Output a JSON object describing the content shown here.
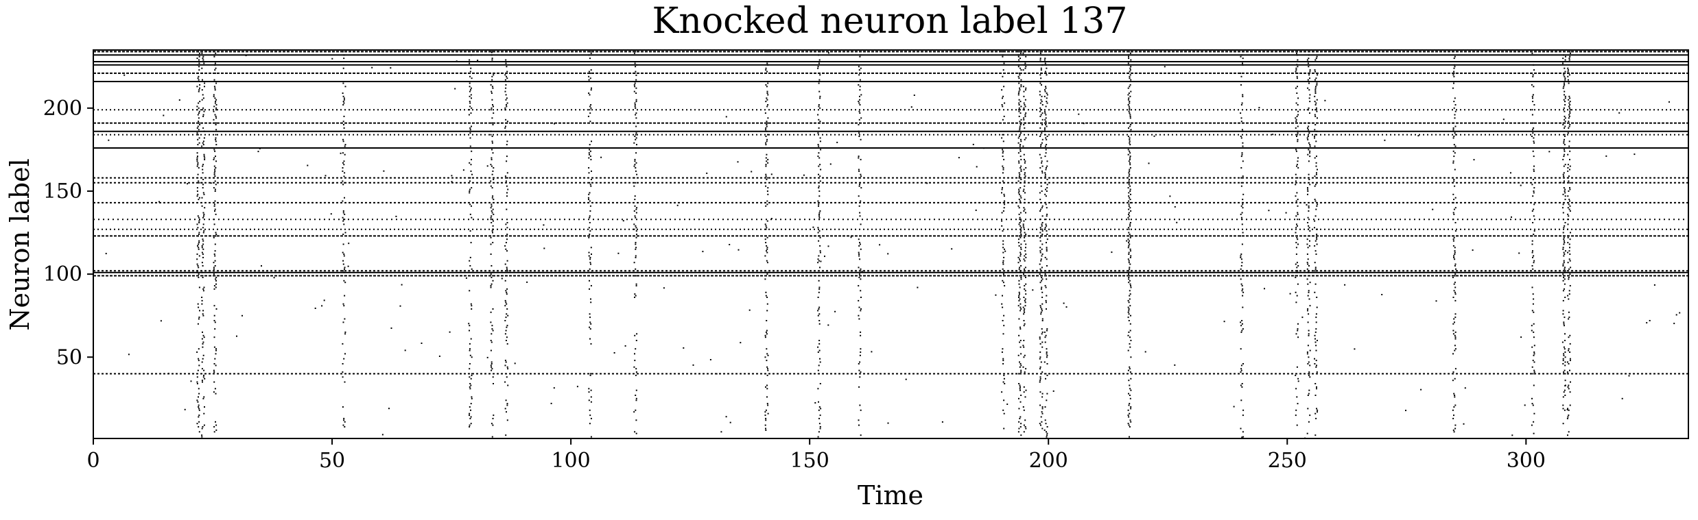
{
  "chart_data": {
    "type": "scatter",
    "style": "raster",
    "title": "Knocked neuron label 137",
    "xlabel": "Time",
    "ylabel": "Neuron label",
    "xlim": [
      0,
      334
    ],
    "ylim": [
      1,
      235
    ],
    "xticks": [
      0,
      50,
      100,
      150,
      200,
      250,
      300
    ],
    "yticks": [
      50,
      100,
      150,
      200
    ],
    "grid": false,
    "legend": "none",
    "marker_color": "#000000",
    "tonic_neurons": [
      {
        "label": 40,
        "rate": 0.55
      },
      {
        "label": 99,
        "rate": 0.6
      },
      {
        "label": 101,
        "rate": 0.95
      },
      {
        "label": 102,
        "rate": 0.5
      },
      {
        "label": 123,
        "rate": 0.7
      },
      {
        "label": 127,
        "rate": 0.3
      },
      {
        "label": 133,
        "rate": 0.25
      },
      {
        "label": 143,
        "rate": 0.45
      },
      {
        "label": 155,
        "rate": 0.5
      },
      {
        "label": 158,
        "rate": 0.55
      },
      {
        "label": 176,
        "rate": 0.95
      },
      {
        "label": 184,
        "rate": 0.4
      },
      {
        "label": 186,
        "rate": 0.95
      },
      {
        "label": 191,
        "rate": 0.6
      },
      {
        "label": 199,
        "rate": 0.3
      },
      {
        "label": 216,
        "rate": 0.95
      },
      {
        "label": 221,
        "rate": 0.6
      },
      {
        "label": 226,
        "rate": 0.95
      },
      {
        "label": 228,
        "rate": 0.95
      },
      {
        "label": 232,
        "rate": 0.95
      },
      {
        "label": 234,
        "rate": 0.7
      }
    ],
    "burst_times": [
      {
        "time": 22,
        "strength": 0.7
      },
      {
        "time": 23,
        "strength": 0.6
      },
      {
        "time": 25.5,
        "strength": 0.6
      },
      {
        "time": 52.5,
        "strength": 0.45
      },
      {
        "time": 79,
        "strength": 0.5
      },
      {
        "time": 83.5,
        "strength": 0.55
      },
      {
        "time": 86.5,
        "strength": 0.5
      },
      {
        "time": 104,
        "strength": 0.5
      },
      {
        "time": 113.5,
        "strength": 0.45
      },
      {
        "time": 141,
        "strength": 0.55
      },
      {
        "time": 152,
        "strength": 0.5
      },
      {
        "time": 160.5,
        "strength": 0.45
      },
      {
        "time": 190.5,
        "strength": 0.45
      },
      {
        "time": 194,
        "strength": 0.85
      },
      {
        "time": 195,
        "strength": 0.7
      },
      {
        "time": 198.5,
        "strength": 0.65
      },
      {
        "time": 199.5,
        "strength": 0.6
      },
      {
        "time": 217,
        "strength": 1.0
      },
      {
        "time": 240.5,
        "strength": 0.45
      },
      {
        "time": 252,
        "strength": 0.55
      },
      {
        "time": 254.5,
        "strength": 0.6
      },
      {
        "time": 256,
        "strength": 0.55
      },
      {
        "time": 285,
        "strength": 0.5
      },
      {
        "time": 301.5,
        "strength": 0.45
      },
      {
        "time": 308,
        "strength": 0.75
      },
      {
        "time": 309,
        "strength": 0.6
      }
    ],
    "background_rate": 0.0025
  }
}
